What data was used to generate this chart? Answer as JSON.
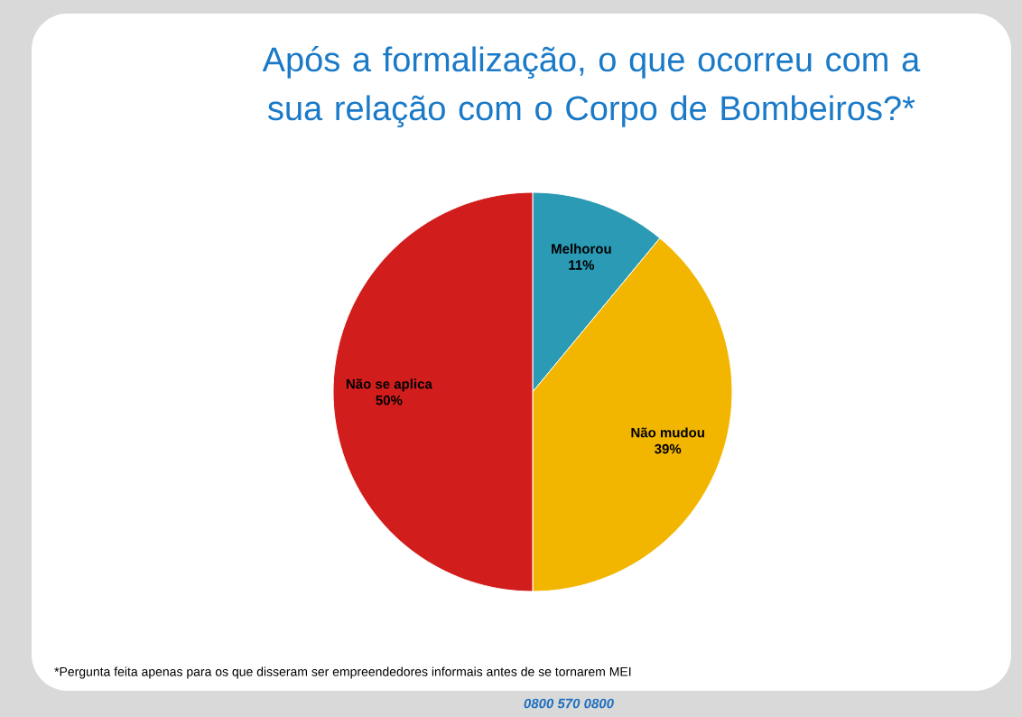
{
  "chart_data": {
    "type": "pie",
    "title": "Após a formalização, o que ocorreu com a sua relação com o Corpo de Bombeiros?*",
    "categories": [
      "Melhorou",
      "Não mudou",
      "Não se aplica"
    ],
    "values": [
      11,
      39,
      50
    ],
    "value_labels": [
      "11%",
      "39%",
      "50%"
    ],
    "colors": [
      "#2a9ab5",
      "#f2b600",
      "#d21d1d"
    ],
    "annotations": [
      "*Pergunta feita apenas para os que disseram ser empreendedores informais antes de se tornarem MEI",
      "0800 570 0800"
    ]
  }
}
